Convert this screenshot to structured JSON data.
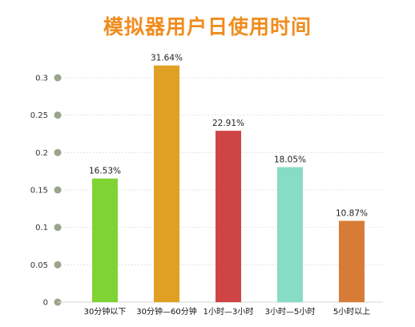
{
  "chart_data": {
    "type": "bar",
    "title": "模拟器用户日使用时间",
    "categories": [
      "30分钟以下",
      "30分钟—60分钟",
      "1小时—3小时",
      "3小时—5小时",
      "5小时以上"
    ],
    "values": [
      0.1653,
      0.3164,
      0.2291,
      0.1805,
      0.1087
    ],
    "data_labels": [
      "16.53%",
      "31.64%",
      "22.91%",
      "18.05%",
      "10.87%"
    ],
    "ylim": [
      0,
      0.3
    ],
    "yticks": [
      0,
      0.05,
      0.1,
      0.15,
      0.2,
      0.25,
      0.3
    ],
    "ytick_labels": [
      "0",
      "0.05",
      "0.1",
      "0.15",
      "0.2",
      "0.25",
      "0.3"
    ],
    "bar_colors": [
      "#7fd334",
      "#dfa024",
      "#cf4545",
      "#87dcc6",
      "#d77c36"
    ],
    "title_color": "#f08c1e",
    "tick_marker_color": "#9aa58a",
    "grid": true,
    "legend": "none"
  }
}
